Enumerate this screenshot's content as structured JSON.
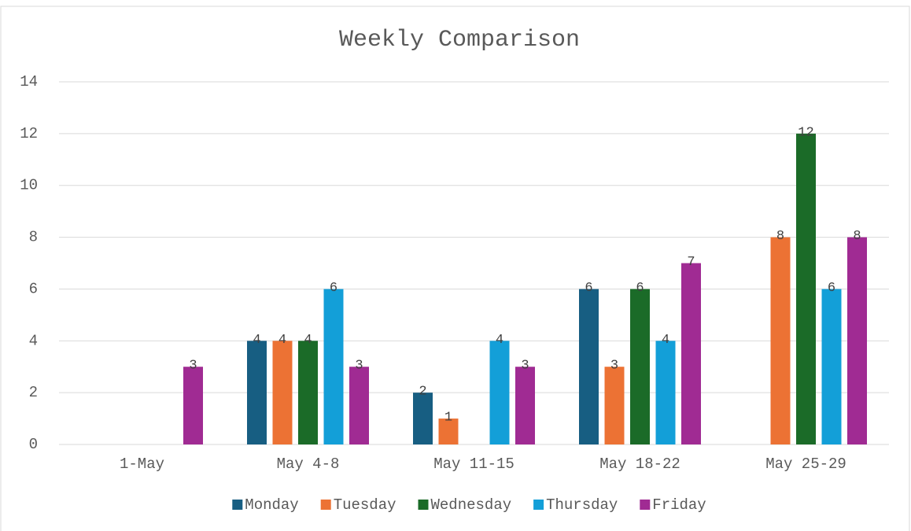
{
  "chart_data": {
    "type": "bar",
    "title": "Weekly Comparison",
    "categories": [
      "1-May",
      "May 4-8",
      "May 11-15",
      "May 18-22",
      "May 25-29"
    ],
    "series": [
      {
        "name": "Monday",
        "color": "#175e82",
        "values": [
          null,
          4,
          2,
          6,
          null
        ]
      },
      {
        "name": "Tuesday",
        "color": "#ec7234",
        "values": [
          null,
          4,
          1,
          3,
          8
        ]
      },
      {
        "name": "Wednesday",
        "color": "#1b6b28",
        "values": [
          null,
          4,
          null,
          6,
          12
        ]
      },
      {
        "name": "Thursday",
        "color": "#139fd8",
        "values": [
          null,
          6,
          4,
          4,
          6
        ]
      },
      {
        "name": "Friday",
        "color": "#a02b93",
        "values": [
          3,
          3,
          3,
          7,
          8
        ]
      }
    ],
    "ylim": [
      0,
      14
    ],
    "yticks": [
      0,
      2,
      4,
      6,
      8,
      10,
      12,
      14
    ],
    "grid": true,
    "legend": "bottom",
    "data_labels": true
  }
}
